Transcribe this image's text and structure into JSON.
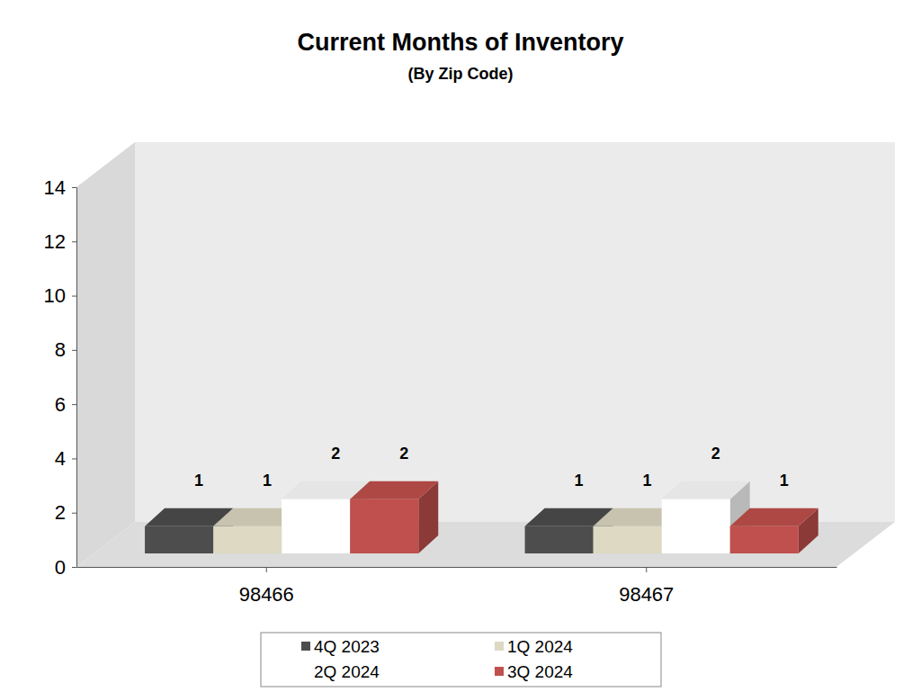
{
  "chart_data": {
    "type": "bar",
    "title": "Current Months of Inventory",
    "subtitle": "(By Zip Code)",
    "categories": [
      "98466",
      "98467"
    ],
    "series": [
      {
        "name": "4Q 2023",
        "color": "#4d4d4d",
        "values": [
          1,
          1
        ]
      },
      {
        "name": "1Q 2024",
        "color": "#ddd9c3",
        "values": [
          1,
          1
        ]
      },
      {
        "name": "2Q 2024",
        "color": "#ffffff",
        "values": [
          2,
          2
        ]
      },
      {
        "name": "3Q 2024",
        "color": "#c0504d",
        "values": [
          2,
          1
        ]
      }
    ],
    "ylim": [
      0,
      14
    ],
    "yticks": [
      0,
      2,
      4,
      6,
      8,
      10,
      12,
      14
    ],
    "grid": false,
    "legend": "bottom",
    "data_labels": true
  }
}
